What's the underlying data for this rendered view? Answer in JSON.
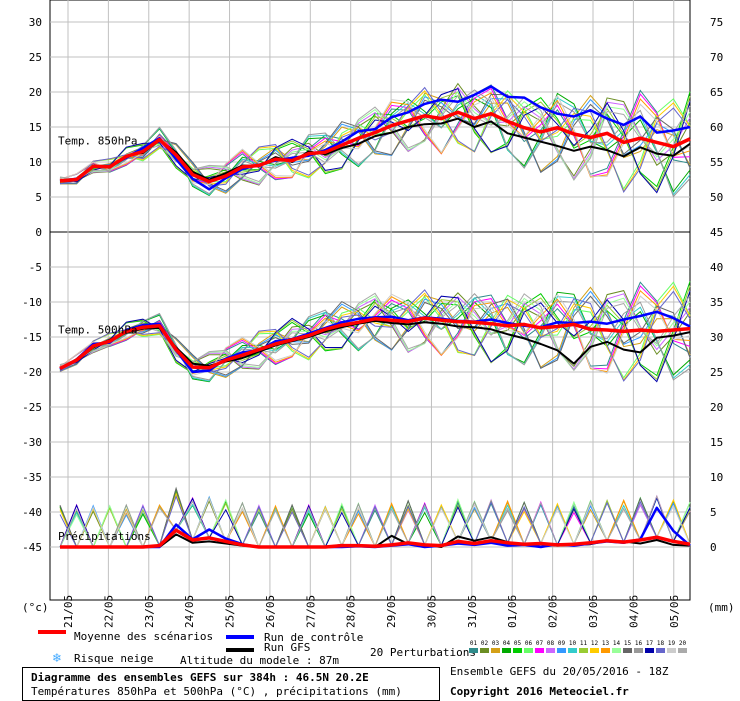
{
  "chart_data": {
    "type": "line",
    "left_axis": {
      "ticks": [
        "30",
        "25",
        "20",
        "15",
        "10",
        "5",
        "0",
        "-5",
        "-10",
        "-15",
        "-20",
        "-25",
        "-30",
        "-35",
        "-40",
        "-45"
      ],
      "unit_label": "(°c)"
    },
    "right_axis": {
      "ticks": [
        "75",
        "70",
        "65",
        "60",
        "55",
        "50",
        "45",
        "40",
        "35",
        "30",
        "25",
        "20",
        "15",
        "10",
        "5",
        "0"
      ],
      "unit_label": "(mm)"
    },
    "x_labels": [
      "21/05",
      "22/05",
      "23/05",
      "24/05",
      "25/05",
      "26/05",
      "27/05",
      "28/05",
      "29/05",
      "30/05",
      "31/05",
      "01/06",
      "02/06",
      "03/06",
      "04/06",
      "05/06"
    ],
    "panels": [
      {
        "label": "Temp. 850hPa",
        "mean": [
          7.3,
          7.5,
          9.4,
          9.3,
          10.8,
          11.5,
          13.2,
          11.0,
          8.2,
          7.2,
          8.0,
          9.3,
          9.5,
          10.4,
          10.2,
          11.2,
          11.4,
          12.4,
          13.4,
          14.2,
          15.2,
          15.9,
          16.6,
          16.2,
          17.1,
          16.2,
          16.9,
          15.8,
          14.9,
          14.3,
          14.9,
          14.0,
          13.5,
          14.1,
          12.8,
          13.4,
          12.8,
          12.2,
          13.3
        ],
        "control": [
          7.3,
          7.6,
          9.3,
          9.4,
          10.6,
          12.0,
          13.4,
          10.4,
          7.6,
          6.1,
          7.7,
          9.0,
          9.6,
          10.2,
          10.6,
          10.9,
          11.7,
          12.9,
          14.4,
          14.7,
          16.4,
          17.1,
          18.3,
          18.9,
          18.6,
          19.6,
          20.8,
          19.3,
          19.2,
          17.8,
          16.9,
          16.5,
          17.4,
          16.2,
          15.3,
          16.5,
          14.2,
          14.5,
          15.0
        ],
        "gfs": [
          7.2,
          7.4,
          9.5,
          9.2,
          10.9,
          11.3,
          13.1,
          11.4,
          8.6,
          7.5,
          8.4,
          9.5,
          9.4,
          10.7,
          10.0,
          11.5,
          11.1,
          12.0,
          12.6,
          13.7,
          14.2,
          15.0,
          15.4,
          15.5,
          16.2,
          15.0,
          15.8,
          14.1,
          13.5,
          12.9,
          12.3,
          11.6,
          12.2,
          11.7,
          10.8,
          12.1,
          11.2,
          10.9,
          12.6
        ]
      },
      {
        "label": "Temp. 500hPa",
        "mean": [
          -19.5,
          -18.3,
          -16.3,
          -15.6,
          -14.2,
          -13.6,
          -13.4,
          -16.8,
          -19.3,
          -19.4,
          -18.3,
          -17.6,
          -16.8,
          -16.0,
          -15.4,
          -14.8,
          -13.9,
          -13.3,
          -12.9,
          -12.4,
          -12.6,
          -12.8,
          -12.3,
          -12.6,
          -12.8,
          -12.9,
          -13.1,
          -13.4,
          -13.2,
          -13.7,
          -13.5,
          -13.2,
          -13.9,
          -14.0,
          -14.2,
          -14.0,
          -14.2,
          -14.0,
          -13.8
        ],
        "control": [
          -19.6,
          -18.2,
          -16.0,
          -15.8,
          -14.0,
          -13.3,
          -13.1,
          -16.9,
          -20.0,
          -19.8,
          -18.1,
          -17.2,
          -16.9,
          -15.6,
          -15.3,
          -14.5,
          -13.7,
          -12.9,
          -12.4,
          -12.2,
          -12.1,
          -12.6,
          -12.2,
          -12.4,
          -12.7,
          -12.8,
          -12.5,
          -13.0,
          -13.4,
          -13.6,
          -12.9,
          -13.0,
          -12.8,
          -13.1,
          -12.5,
          -12.0,
          -11.4,
          -12.3,
          -13.5
        ],
        "gfs": [
          -19.4,
          -18.4,
          -16.5,
          -15.4,
          -14.4,
          -13.8,
          -13.7,
          -16.5,
          -18.8,
          -19.1,
          -18.5,
          -18.0,
          -17.1,
          -16.2,
          -15.6,
          -15.0,
          -14.2,
          -13.6,
          -13.1,
          -12.7,
          -13.0,
          -13.2,
          -12.9,
          -13.1,
          -13.5,
          -13.6,
          -13.9,
          -14.6,
          -15.2,
          -16.0,
          -16.9,
          -18.8,
          -16.4,
          -15.7,
          -16.8,
          -17.2,
          -15.1,
          -14.8,
          -14.3
        ]
      },
      {
        "label": "Précipitations",
        "mean": [
          0,
          0,
          0,
          0,
          0,
          0,
          0.2,
          2.4,
          1.0,
          1.3,
          0.8,
          0.3,
          0,
          0,
          0,
          0,
          0,
          0.2,
          0.2,
          0.1,
          0.3,
          0.6,
          0.3,
          0.2,
          0.8,
          0.5,
          0.9,
          0.6,
          0.4,
          0.5,
          0.3,
          0.4,
          0.6,
          0.9,
          0.7,
          1.0,
          1.4,
          0.8,
          0.4
        ],
        "control": [
          0,
          0,
          0,
          0,
          0,
          0,
          0,
          3.2,
          1.1,
          2.5,
          1.2,
          0.4,
          0,
          0,
          0,
          0,
          0,
          0,
          0.1,
          0,
          0.2,
          0.4,
          0,
          0.2,
          0.5,
          0.3,
          0.6,
          0.2,
          0.3,
          0,
          0.4,
          0.2,
          0.5,
          0.8,
          0.6,
          1.1,
          5.6,
          2.3,
          0.2
        ],
        "gfs": [
          0,
          0,
          0,
          0,
          0,
          0,
          0,
          1.8,
          0.6,
          0.8,
          0.5,
          0.2,
          0,
          0,
          0,
          0,
          0,
          0.3,
          0.2,
          0,
          1.6,
          0.4,
          0.3,
          0,
          1.5,
          0.9,
          1.4,
          0.7,
          0.3,
          0.4,
          0.2,
          0.3,
          0.4,
          0.9,
          0.8,
          0.5,
          1.0,
          0.3,
          0.2
        ]
      }
    ],
    "perturbation_labels": [
      "01",
      "02",
      "03",
      "04",
      "05",
      "06",
      "07",
      "08",
      "09",
      "10",
      "11",
      "12",
      "13",
      "14",
      "15",
      "16",
      "17",
      "18",
      "19",
      "20"
    ],
    "perturbation_colors": [
      "#2e8b8b",
      "#6b8e23",
      "#d4a017",
      "#00aa00",
      "#00cc00",
      "#66ff66",
      "#ff00ff",
      "#cc66ff",
      "#3399ff",
      "#33cccc",
      "#99cc33",
      "#ffcc00",
      "#ff9900",
      "#99ff99",
      "#666666",
      "#999999",
      "#0000aa",
      "#6666cc",
      "#cccccc",
      "#aaaaaa"
    ],
    "colors": {
      "mean": "#ff0000",
      "control": "#0000ff",
      "gfs": "#000000",
      "grid": "#c0c0c0",
      "snow": "#44aaff"
    }
  },
  "legend": {
    "mean_label": "Moyenne des scénarios",
    "control_label": "Run de contrôle",
    "gfs_label": "Run GFS",
    "perturbations_label": "20 Perturbations",
    "snow_label": "Risque neige",
    "altitude_label": "Altitude du modele : 87m",
    "title": "Diagramme des ensembles GEFS sur 384h : 46.5N 20.2E",
    "subtitle": "Températures 850hPa et 500hPa (°C) , précipitations (mm)",
    "ensemble_run": "Ensemble GEFS du 20/05/2016 - 18Z",
    "copyright": "Copyright 2016 Meteociel.fr"
  }
}
